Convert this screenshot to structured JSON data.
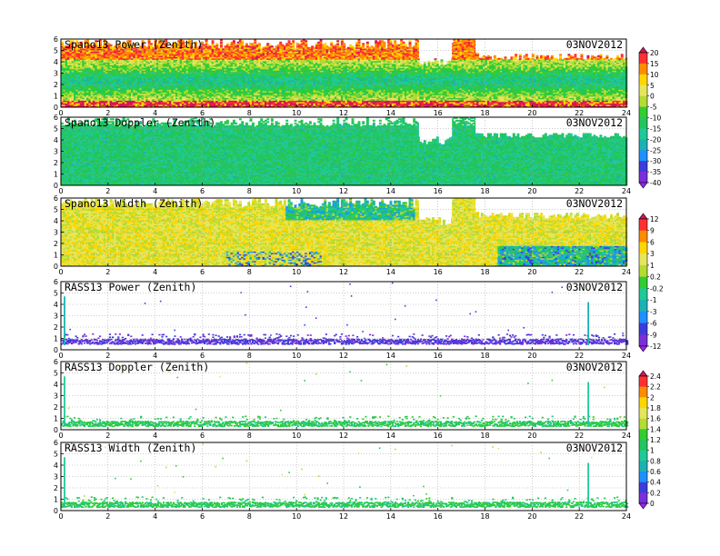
{
  "figure": {
    "background": "#ffffff"
  },
  "chart_data": [
    {
      "type": "heatmap",
      "title": "Spano13 Power (Zenith)",
      "date": "03NOV2012",
      "x_ticks": [
        "0",
        "2",
        "4",
        "6",
        "8",
        "10",
        "12",
        "14",
        "16",
        "18",
        "20",
        "22",
        "24"
      ],
      "y_ticks": [
        "0",
        "1",
        "2",
        "3",
        "4",
        "5",
        "6"
      ],
      "xlim": [
        0,
        24
      ],
      "ylim": [
        0,
        6
      ],
      "grid": true,
      "colorbar": "power",
      "pattern": "power",
      "gaps": [
        [
          15.2,
          16.6,
          4.3
        ],
        [
          17.6,
          24,
          4.8
        ]
      ]
    },
    {
      "type": "heatmap",
      "title": "Spano13 Doppler (Zenith)",
      "date": "03NOV2012",
      "x_ticks": [
        "0",
        "2",
        "4",
        "6",
        "8",
        "10",
        "12",
        "14",
        "16",
        "18",
        "20",
        "22",
        "24"
      ],
      "y_ticks": [
        "0",
        "1",
        "2",
        "3",
        "4",
        "5",
        "6"
      ],
      "xlim": [
        0,
        24
      ],
      "ylim": [
        0,
        6
      ],
      "grid": true,
      "colorbar": "power",
      "pattern": "doppler",
      "gaps": [
        [
          15.2,
          16.6,
          4.3
        ],
        [
          17.6,
          24,
          4.6
        ]
      ]
    },
    {
      "type": "heatmap",
      "title": "Spano13 Width (Zenith)",
      "date": "03NOV2012",
      "x_ticks": [
        "0",
        "2",
        "4",
        "6",
        "8",
        "10",
        "12",
        "14",
        "16",
        "18",
        "20",
        "22",
        "24"
      ],
      "y_ticks": [
        "0",
        "1",
        "2",
        "3",
        "4",
        "5",
        "6"
      ],
      "xlim": [
        0,
        24
      ],
      "ylim": [
        0,
        6
      ],
      "grid": true,
      "colorbar": "width",
      "pattern": "width",
      "gaps": [
        [
          15.2,
          16.6,
          4.3
        ],
        [
          17.6,
          24,
          4.8
        ]
      ]
    },
    {
      "type": "heatmap",
      "title": "RASS13 Power (Zenith)",
      "date": "03NOV2012",
      "x_ticks": [
        "0",
        "2",
        "4",
        "6",
        "8",
        "10",
        "12",
        "14",
        "16",
        "18",
        "20",
        "22",
        "24"
      ],
      "y_ticks": [
        "0",
        "1",
        "2",
        "3",
        "4",
        "5",
        "6"
      ],
      "xlim": [
        0,
        24
      ],
      "ylim": [
        0,
        6
      ],
      "grid": true,
      "colorbar": "width",
      "pattern": "rass_power",
      "gaps": []
    },
    {
      "type": "heatmap",
      "title": "RASS13 Doppler (Zenith)",
      "date": "03NOV2012",
      "x_ticks": [
        "0",
        "2",
        "4",
        "6",
        "8",
        "10",
        "12",
        "14",
        "16",
        "18",
        "20",
        "22",
        "24"
      ],
      "y_ticks": [
        "0",
        "1",
        "2",
        "3",
        "4",
        "5",
        "6"
      ],
      "xlim": [
        0,
        24
      ],
      "ylim": [
        0,
        6
      ],
      "grid": true,
      "colorbar": "rass",
      "pattern": "rass_doppler",
      "gaps": []
    },
    {
      "type": "heatmap",
      "title": "RASS13 Width (Zenith)",
      "date": "03NOV2012",
      "x_ticks": [
        "0",
        "2",
        "4",
        "6",
        "8",
        "10",
        "12",
        "14",
        "16",
        "18",
        "20",
        "22",
        "24"
      ],
      "y_ticks": [
        "0",
        "1",
        "2",
        "3",
        "4",
        "5",
        "6"
      ],
      "xlim": [
        0,
        24
      ],
      "ylim": [
        0,
        6
      ],
      "grid": true,
      "colorbar": "rass",
      "pattern": "rass_width",
      "gaps": []
    }
  ],
  "colorbars": {
    "power": {
      "labels": [
        "20",
        "15",
        "10",
        "5",
        "0",
        "-5",
        "-10",
        "-15",
        "-20",
        "-25",
        "-30",
        "-35",
        "-40"
      ],
      "colors": [
        "#d4145a",
        "#ff3030",
        "#ff8c00",
        "#ffd700",
        "#e6e65c",
        "#b4dc32",
        "#32cd32",
        "#22c55e",
        "#20c997",
        "#1ab2b2",
        "#1e90ff",
        "#3c3cdc",
        "#7b2fd8",
        "#a020f0"
      ]
    },
    "width": {
      "labels": [
        "12",
        "9",
        "6",
        "3",
        "1",
        "0.2",
        "-0.2",
        "-1",
        "-3",
        "-6",
        "-9",
        "-12"
      ],
      "colors": [
        "#d4145a",
        "#ff3030",
        "#ff8c00",
        "#ffd700",
        "#e6e65c",
        "#b4dc32",
        "#32cd32",
        "#20c997",
        "#1ab2b2",
        "#1e90ff",
        "#3c3cdc",
        "#7b2fd8",
        "#a020f0"
      ]
    },
    "rass": {
      "labels": [
        "2.4",
        "2.2",
        "2",
        "1.8",
        "1.6",
        "1.4",
        "1.2",
        "1",
        "0.8",
        "0.6",
        "0.4",
        "0.2",
        "0"
      ],
      "colors": [
        "#d4145a",
        "#ff3030",
        "#ff8c00",
        "#ffd700",
        "#e6e65c",
        "#b4dc32",
        "#32cd32",
        "#22c55e",
        "#20c997",
        "#1ab2b2",
        "#1e90ff",
        "#3c3cdc",
        "#7b2fd8",
        "#a020f0"
      ]
    }
  }
}
